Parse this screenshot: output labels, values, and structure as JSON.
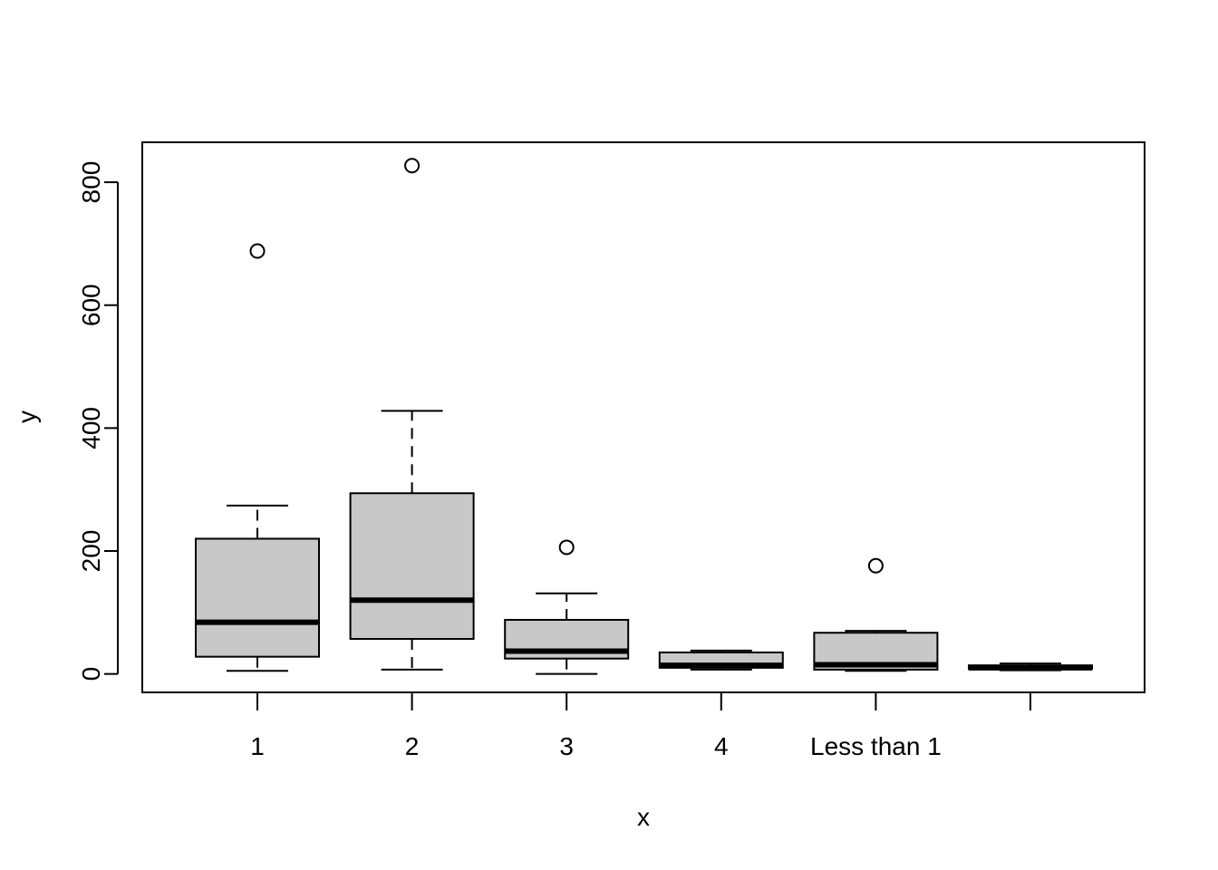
{
  "chart_data": {
    "type": "boxplot",
    "title": "",
    "xlabel": "x",
    "ylabel": "y",
    "ylim": [
      -30,
      865
    ],
    "yticks": [
      0,
      200,
      400,
      600,
      800
    ],
    "categories": [
      "1",
      "2",
      "3",
      "4",
      "Less than 1",
      ""
    ],
    "boxes": [
      {
        "category": "1",
        "whisker_low": 5,
        "q1": 28,
        "median": 84,
        "q3": 220,
        "whisker_high": 274,
        "outliers": [
          688
        ]
      },
      {
        "category": "2",
        "whisker_low": 7,
        "q1": 57,
        "median": 120,
        "q3": 294,
        "whisker_high": 428,
        "outliers": [
          827
        ]
      },
      {
        "category": "3",
        "whisker_low": 0,
        "q1": 25,
        "median": 37,
        "q3": 88,
        "whisker_high": 131,
        "outliers": [
          206
        ]
      },
      {
        "category": "4",
        "whisker_low": 7,
        "q1": 10,
        "median": 14,
        "q3": 35,
        "whisker_high": 38,
        "outliers": []
      },
      {
        "category": "Less than 1",
        "whisker_low": 5,
        "q1": 7,
        "median": 15,
        "q3": 67,
        "whisker_high": 70,
        "outliers": [
          176
        ]
      },
      {
        "category": "",
        "whisker_low": 6,
        "q1": 8,
        "median": 10,
        "q3": 14,
        "whisker_high": 17,
        "outliers": []
      }
    ],
    "box_fill": "#c8c8c8",
    "grid": false,
    "legend": "none"
  }
}
